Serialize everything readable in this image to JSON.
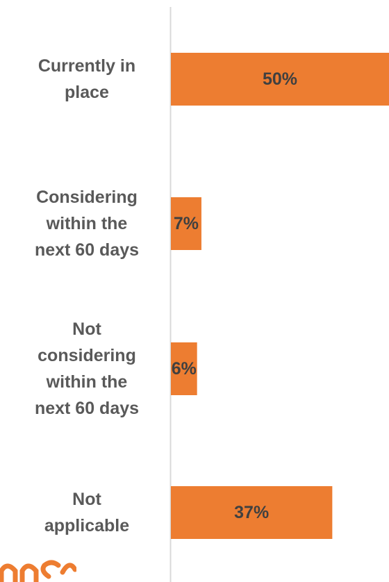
{
  "colors": {
    "bar": "#ED7D31",
    "axis": "#D9D9D9",
    "category_text": "#595959",
    "value_text": "#404040",
    "logo": "#ED7D31"
  },
  "chart_data": {
    "type": "bar",
    "orientation": "horizontal",
    "title": "",
    "xlabel": "",
    "ylabel": "",
    "grid": false,
    "legend": "none",
    "xlim": [
      0,
      50
    ],
    "categories": [
      [
        "Currently in",
        "place"
      ],
      [
        "Considering",
        "within the",
        "next 60 days"
      ],
      [
        "Not",
        "considering",
        "within the",
        "next 60 days"
      ],
      [
        "Not",
        "applicable"
      ]
    ],
    "values": [
      50,
      7,
      6,
      37
    ],
    "value_labels": [
      "50%",
      "7%",
      "6%",
      "37%"
    ]
  }
}
